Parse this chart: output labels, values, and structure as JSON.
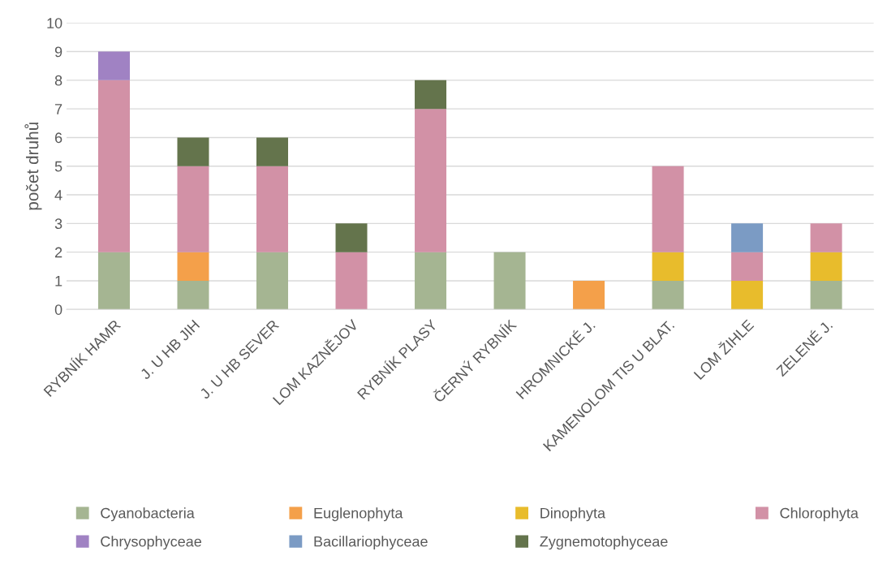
{
  "chart_data": {
    "type": "bar",
    "stacked": true,
    "ylabel": "počet druhů",
    "categories": [
      "RYBNÍK HAMR",
      "J. U HB JIH",
      "J. U HB SEVER",
      "LOM KAZNĚJOV",
      "RYBNÍK PLASY",
      "ČERNÝ RYBNÍK",
      "HROMNICKÉ J.",
      "KAMENOLOM TIS U BLAT.",
      "LOM ŽIHLE",
      "ZELENÉ J."
    ],
    "series": [
      {
        "name": "Cyanobacteria",
        "color": "#a5b592",
        "values": [
          2,
          1,
          2,
          null,
          2,
          2,
          null,
          1,
          null,
          1
        ]
      },
      {
        "name": "Euglenophyta",
        "color": "#f4a04a",
        "values": [
          null,
          1,
          null,
          null,
          null,
          null,
          1,
          null,
          null,
          null
        ]
      },
      {
        "name": "Dinophyta",
        "color": "#e8bc2c",
        "values": [
          null,
          null,
          null,
          null,
          null,
          null,
          null,
          1,
          1,
          1
        ]
      },
      {
        "name": "Chlorophyta",
        "color": "#d291a6",
        "values": [
          6,
          3,
          3,
          2,
          5,
          null,
          null,
          3,
          1,
          1
        ]
      },
      {
        "name": "Chrysophyceae",
        "color": "#a082c3",
        "values": [
          1,
          null,
          null,
          null,
          null,
          null,
          null,
          null,
          null,
          null
        ]
      },
      {
        "name": "Bacillariophyceae",
        "color": "#7b9bc4",
        "values": [
          null,
          null,
          null,
          null,
          null,
          null,
          null,
          null,
          1,
          null
        ]
      },
      {
        "name": "Zygnemotophyceae",
        "color": "#64744c",
        "values": [
          null,
          1,
          1,
          1,
          1,
          null,
          null,
          null,
          null,
          null
        ]
      }
    ],
    "ylim": [
      0,
      10
    ],
    "yticks": [
      0,
      1,
      2,
      3,
      4,
      5,
      6,
      7,
      8,
      9,
      10
    ],
    "grid": "y",
    "legend": "bottom"
  }
}
